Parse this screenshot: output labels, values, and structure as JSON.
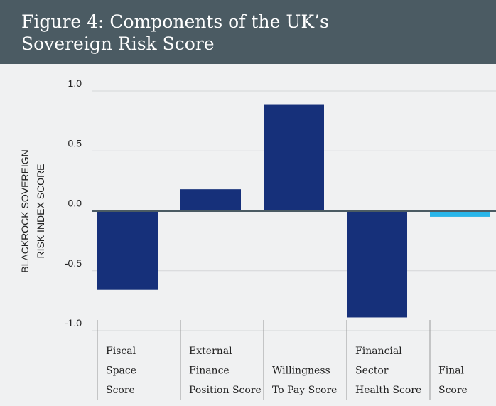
{
  "chart_data": {
    "type": "bar",
    "title": "Figure 4: Components of the UK’s\nSovereign Risk Score",
    "ylabel": "BLACKROCK SOVEREIGN\nRISK INDEX SCORE",
    "categories": [
      "Fiscal\nSpace\nScore",
      "External\nFinance\nPosition Score",
      "Willingness\nTo Pay Score",
      "Financial\nSector\nHealth Score",
      "Final\nScore"
    ],
    "values": [
      -0.66,
      0.18,
      0.89,
      -0.89,
      -0.05
    ],
    "colors": [
      "#16307a",
      "#16307a",
      "#16307a",
      "#16307a",
      "#29b6ea"
    ],
    "ylim": [
      -1.0,
      1.0
    ],
    "yticks": [
      {
        "value": 1.0,
        "label": "1.0"
      },
      {
        "value": 0.5,
        "label": "0.5"
      },
      {
        "value": 0.0,
        "label": "0.0"
      },
      {
        "value": -0.5,
        "label": "-0.5"
      },
      {
        "value": -1.0,
        "label": "-1.0"
      }
    ],
    "grid": true
  }
}
